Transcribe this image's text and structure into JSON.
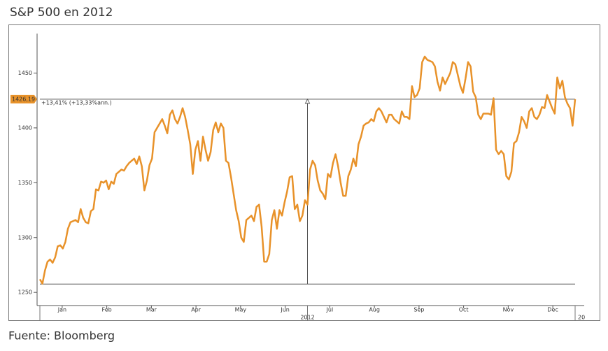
{
  "title": "S&P 500 en 2012",
  "source": "Fuente: Bloomberg",
  "chart_data": {
    "type": "line",
    "months": [
      "Jan",
      "Feb",
      "Mar",
      "Apr",
      "May",
      "Jun",
      "Jul",
      "Aug",
      "Sep",
      "Oct",
      "Nov",
      "Dec"
    ],
    "year_label": "2012",
    "next_year_label": "20",
    "series": [
      {
        "color": "#e8922a",
        "values": [
          1262,
          1258,
          1270,
          1278,
          1280,
          1277,
          1282,
          1292,
          1293,
          1290,
          1296,
          1308,
          1314,
          1315,
          1316,
          1314,
          1326,
          1318,
          1314,
          1313,
          1324,
          1326,
          1344,
          1343,
          1351,
          1350,
          1352,
          1344,
          1351,
          1349,
          1358,
          1360,
          1362,
          1361,
          1365,
          1368,
          1370,
          1372,
          1367,
          1374,
          1365,
          1343,
          1352,
          1366,
          1372,
          1396,
          1400,
          1404,
          1408,
          1402,
          1395,
          1412,
          1416,
          1408,
          1404,
          1410,
          1418,
          1410,
          1398,
          1385,
          1358,
          1380,
          1388,
          1370,
          1392,
          1380,
          1370,
          1378,
          1398,
          1405,
          1396,
          1404,
          1400,
          1370,
          1368,
          1355,
          1340,
          1325,
          1315,
          1300,
          1296,
          1316,
          1318,
          1320,
          1315,
          1328,
          1330,
          1310,
          1278,
          1278,
          1285,
          1316,
          1325,
          1308,
          1325,
          1320,
          1332,
          1342,
          1355,
          1356,
          1326,
          1330,
          1315,
          1320,
          1334,
          1330,
          1362,
          1370,
          1366,
          1352,
          1343,
          1340,
          1335,
          1358,
          1355,
          1368,
          1376,
          1365,
          1350,
          1338,
          1338,
          1356,
          1362,
          1372,
          1365,
          1385,
          1392,
          1402,
          1404,
          1405,
          1408,
          1406,
          1415,
          1418,
          1415,
          1410,
          1405,
          1412,
          1412,
          1408,
          1406,
          1404,
          1415,
          1410,
          1410,
          1408,
          1438,
          1428,
          1430,
          1436,
          1460,
          1465,
          1462,
          1461,
          1460,
          1456,
          1442,
          1434,
          1446,
          1440,
          1445,
          1450,
          1460,
          1458,
          1448,
          1438,
          1432,
          1445,
          1460,
          1456,
          1433,
          1428,
          1412,
          1408,
          1413,
          1413,
          1413,
          1412,
          1427,
          1380,
          1376,
          1379,
          1376,
          1356,
          1353,
          1360,
          1386,
          1388,
          1396,
          1410,
          1406,
          1400,
          1415,
          1418,
          1410,
          1408,
          1412,
          1419,
          1418,
          1430,
          1424,
          1418,
          1413,
          1446,
          1436,
          1443,
          1428,
          1422,
          1418,
          1402,
          1426.19
        ]
      }
    ],
    "ylim": [
      1238,
      1486
    ],
    "yticks": [
      1250,
      1300,
      1350,
      1400,
      1450
    ],
    "last_value": {
      "value": 1426.19,
      "label": "1426,19"
    },
    "start_value": 1257.6,
    "change_label": "+13,41% (+13,33%ann.)"
  }
}
